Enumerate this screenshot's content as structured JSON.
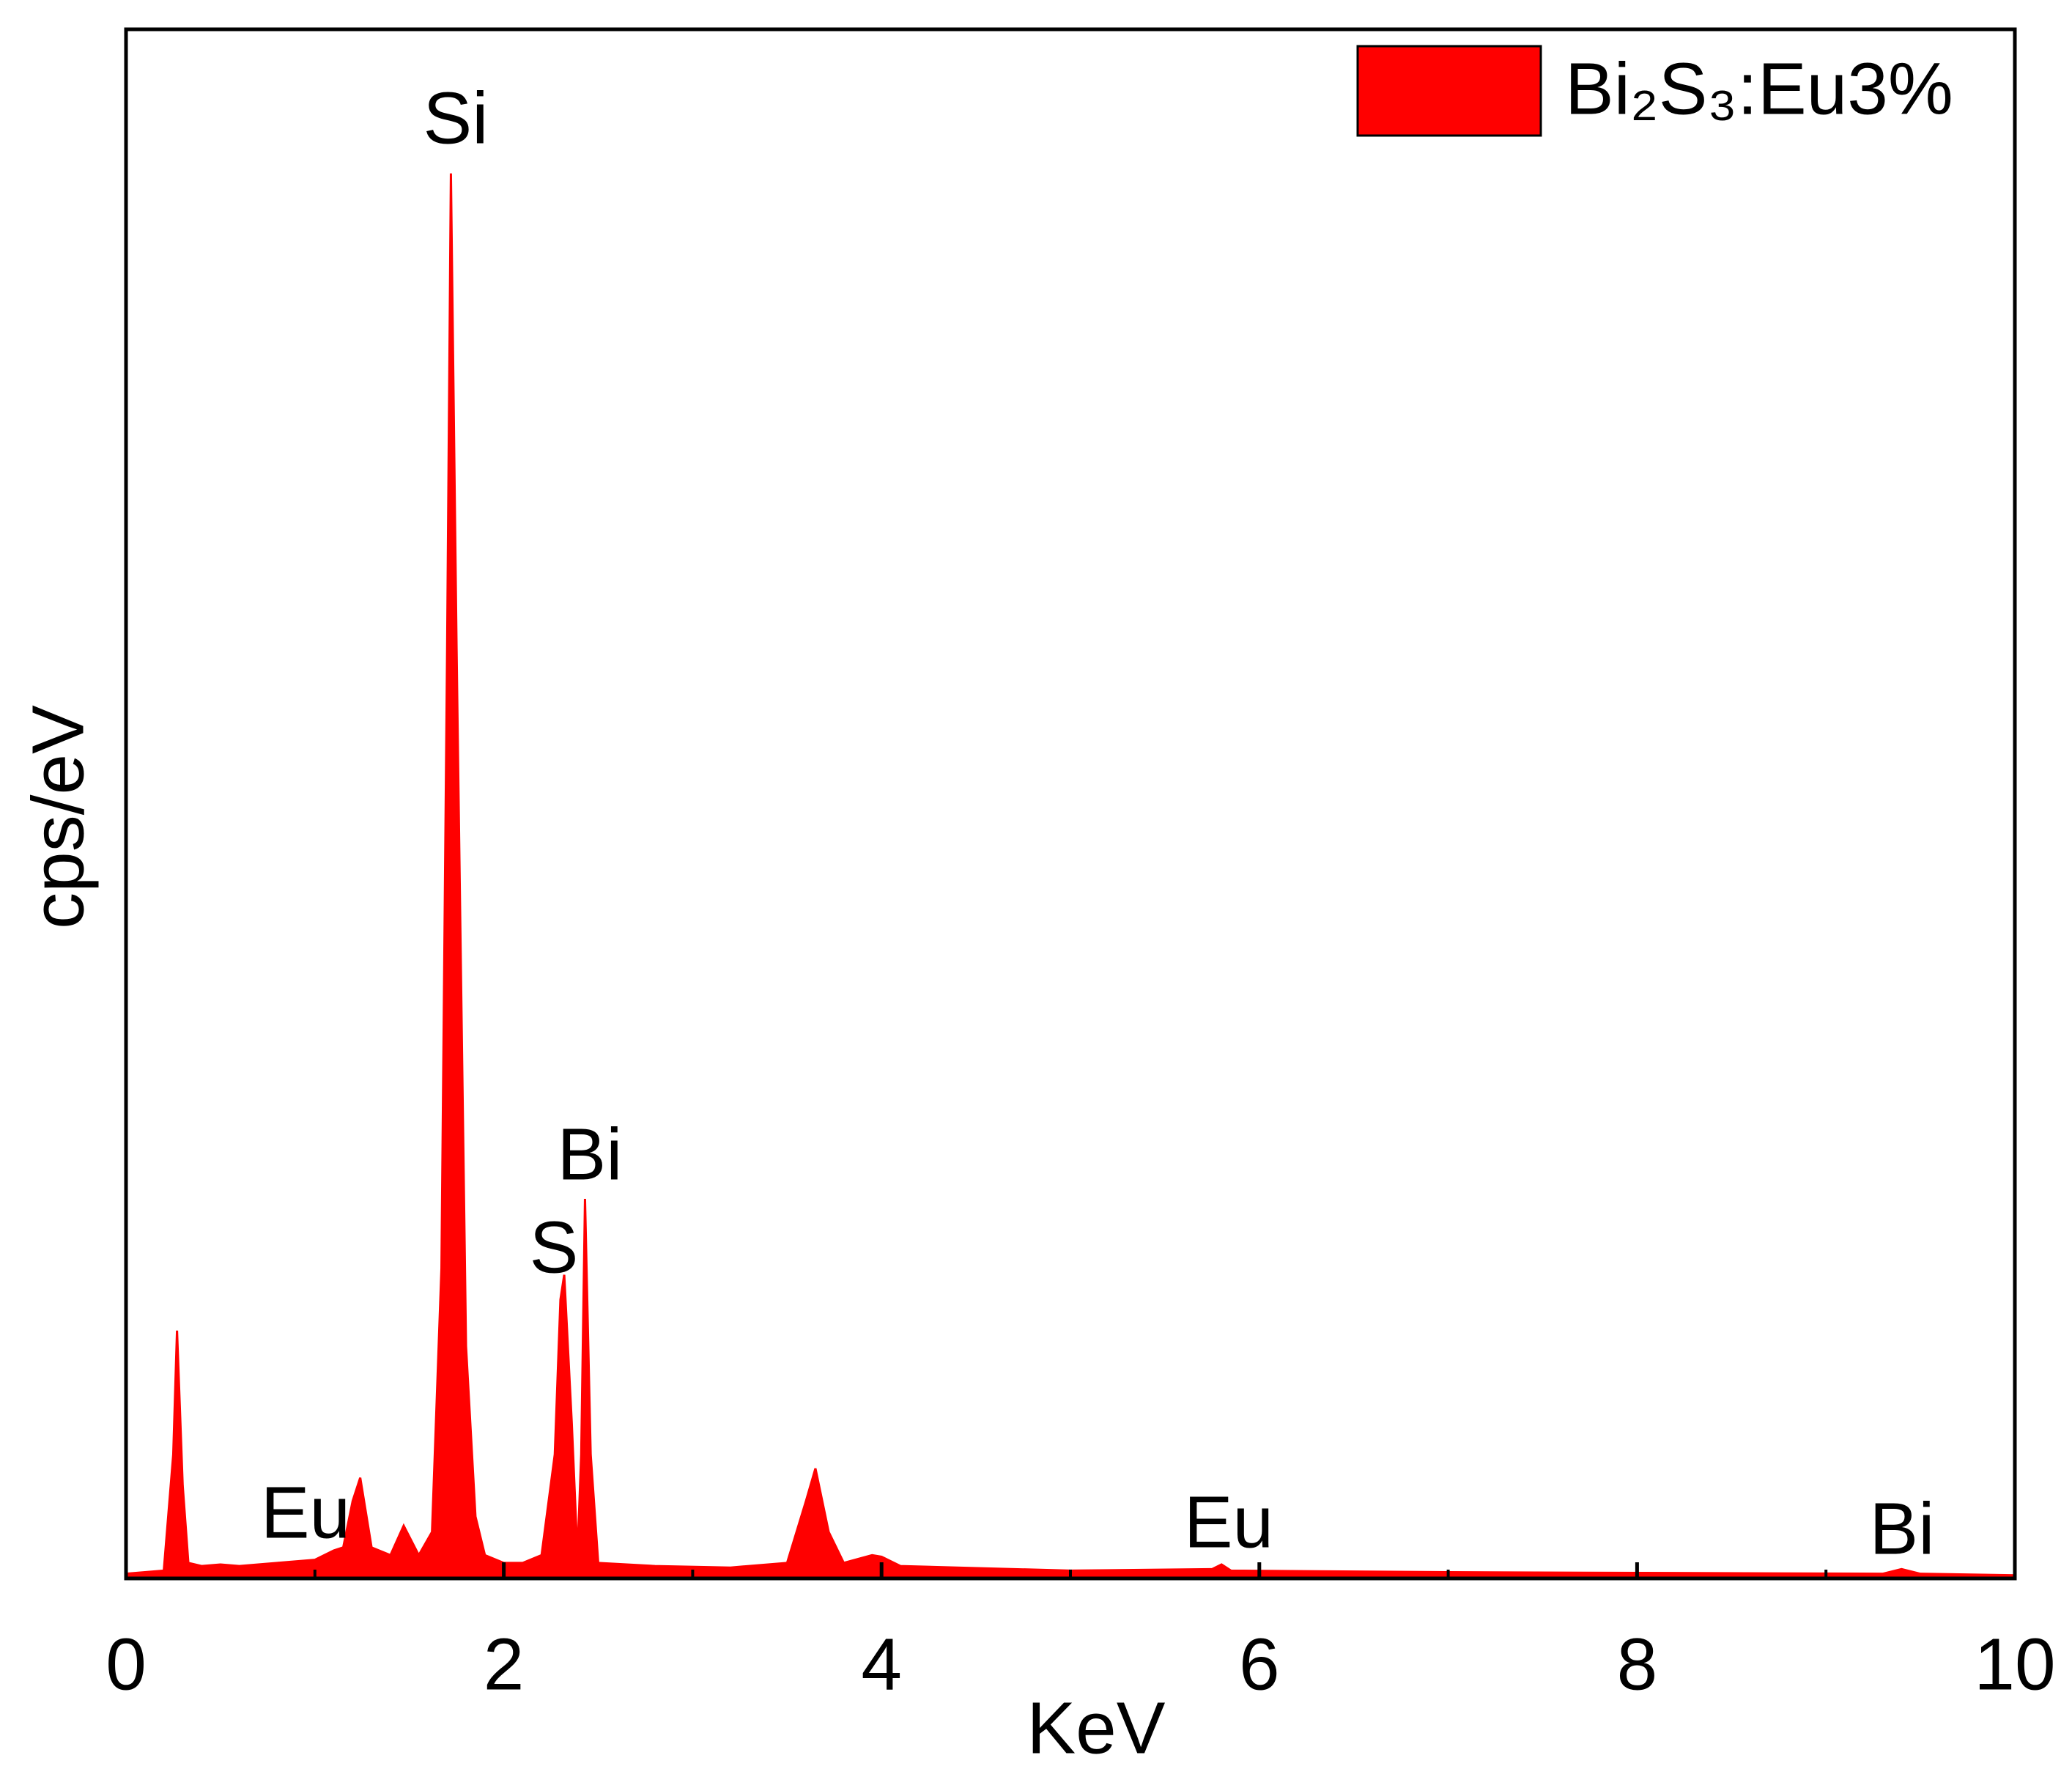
{
  "chart_data": {
    "type": "area",
    "x_label": "KeV",
    "y_label": "cps/eV",
    "xlim": [
      0,
      10
    ],
    "xticks": [
      0,
      2,
      4,
      6,
      8,
      10
    ],
    "ylim": [
      0,
      100
    ],
    "legend": "top-right",
    "annotations": [
      "Si",
      "Bi",
      "S",
      "Eu",
      "Eu",
      "Bi"
    ],
    "series": [
      {
        "name": "Bi₂S₃:Eu3%",
        "color": "#ff0000",
        "x": [
          0,
          0.2,
          0.25,
          0.27,
          0.3,
          0.33,
          0.4,
          0.5,
          0.6,
          0.8,
          1.0,
          1.1,
          1.15,
          1.2,
          1.24,
          1.3,
          1.4,
          1.47,
          1.55,
          1.62,
          1.67,
          1.7,
          1.72,
          1.75,
          1.8,
          1.85,
          1.9,
          2.0,
          2.1,
          2.2,
          2.27,
          2.3,
          2.32,
          2.36,
          2.39,
          2.41,
          2.43,
          2.46,
          2.5,
          2.8,
          3.2,
          3.5,
          3.6,
          3.65,
          3.72,
          3.8,
          3.95,
          4.0,
          4.1,
          5.0,
          5.75,
          5.8,
          5.85,
          7.0,
          9.3,
          9.4,
          9.5,
          10
        ],
        "values": [
          0.3,
          0.5,
          8,
          16,
          6,
          1,
          0.8,
          0.9,
          0.8,
          1,
          1.2,
          1.8,
          2,
          5,
          6.5,
          2,
          1.5,
          3.4,
          1.5,
          3,
          20,
          60,
          90.7,
          60,
          15,
          4,
          1.5,
          1,
          1,
          1.5,
          8,
          18,
          19.6,
          10,
          1.5,
          8,
          24.5,
          8,
          1,
          0.8,
          0.7,
          1,
          5,
          7.1,
          3,
          1,
          1.5,
          1.4,
          0.8,
          0.5,
          0.6,
          0.9,
          0.5,
          0.4,
          0.3,
          0.6,
          0.3,
          0.2
        ]
      }
    ]
  }
}
